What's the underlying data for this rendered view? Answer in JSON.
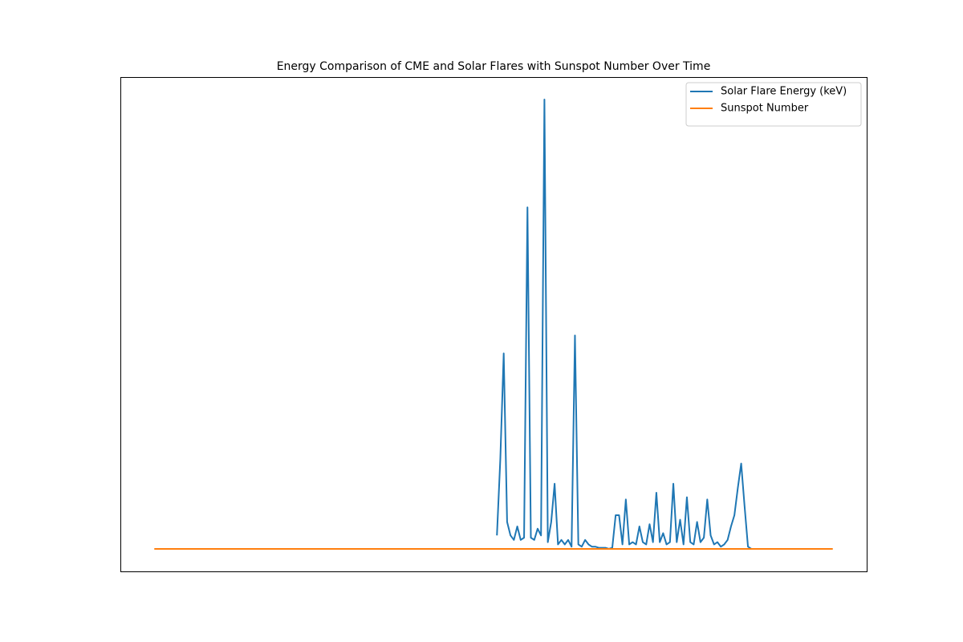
{
  "chart_data": {
    "type": "line",
    "title": "Energy Comparison of CME and Solar Flares with Sunspot Number Over Time",
    "xlim": [
      -10,
      210
    ],
    "ylim": [
      -1,
      21
    ],
    "legend": "upper right",
    "series": [
      {
        "name": "Solar Flare Energy (keV)",
        "color": "#1f77b4",
        "values": [
          null,
          null,
          null,
          null,
          null,
          null,
          null,
          null,
          null,
          null,
          null,
          null,
          null,
          null,
          null,
          null,
          null,
          null,
          null,
          null,
          null,
          null,
          null,
          null,
          null,
          null,
          null,
          null,
          null,
          null,
          null,
          null,
          null,
          null,
          null,
          null,
          null,
          null,
          null,
          null,
          null,
          null,
          null,
          null,
          null,
          null,
          null,
          null,
          null,
          null,
          null,
          null,
          null,
          null,
          null,
          null,
          null,
          null,
          null,
          null,
          null,
          null,
          null,
          null,
          null,
          null,
          null,
          null,
          null,
          null,
          null,
          null,
          null,
          null,
          null,
          null,
          null,
          null,
          null,
          null,
          null,
          null,
          null,
          null,
          null,
          null,
          null,
          null,
          null,
          null,
          null,
          null,
          null,
          null,
          null,
          null,
          null,
          null,
          null,
          null,
          null,
          0.6,
          4.0,
          8.7,
          1.2,
          0.6,
          0.4,
          1.0,
          0.4,
          0.5,
          15.2,
          0.5,
          0.4,
          0.9,
          0.6,
          20.0,
          0.3,
          1.2,
          2.9,
          0.2,
          0.4,
          0.2,
          0.4,
          0.1,
          9.5,
          0.2,
          0.1,
          0.4,
          0.2,
          0.1,
          0.1,
          0.05,
          0.05,
          0.05,
          0,
          0.05,
          1.5,
          1.5,
          0.2,
          2.2,
          0.2,
          0.3,
          0.2,
          1.0,
          0.3,
          0.2,
          1.1,
          0.3,
          2.5,
          0.3,
          0.7,
          0.2,
          0.3,
          2.9,
          0.3,
          1.3,
          0.2,
          2.3,
          0.3,
          0.2,
          1.2,
          0.3,
          0.5,
          2.2,
          0.6,
          0.2,
          0.3,
          0.1,
          0.2,
          0.4,
          1.0,
          1.5,
          2.7,
          3.8,
          1.9,
          0.1,
          0,
          null,
          null,
          null,
          null,
          null,
          null,
          null,
          null,
          null,
          null,
          null,
          null,
          null,
          null,
          null,
          null,
          null,
          null,
          null,
          null,
          null,
          null,
          null,
          null
        ]
      },
      {
        "name": "Sunspot Number",
        "color": "#ff7f0e",
        "values": [
          0,
          0,
          0,
          0,
          0,
          0,
          0,
          0,
          0,
          0,
          0,
          0,
          0,
          0,
          0,
          0,
          0,
          0,
          0,
          0,
          0,
          0,
          0,
          0,
          0,
          0,
          0,
          0,
          0,
          0,
          0,
          0,
          0,
          0,
          0,
          0,
          0,
          0,
          0,
          0,
          0,
          0,
          0,
          0,
          0,
          0,
          0,
          0,
          0,
          0,
          0,
          0,
          0,
          0,
          0,
          0,
          0,
          0,
          0,
          0,
          0,
          0,
          0,
          0,
          0,
          0,
          0,
          0,
          0,
          0,
          0,
          0,
          0,
          0,
          0,
          0,
          0,
          0,
          0,
          0,
          0,
          0,
          0,
          0,
          0,
          0,
          0,
          0,
          0,
          0,
          0,
          0,
          0,
          0,
          0,
          0,
          0,
          0,
          0,
          0,
          0,
          0,
          0,
          0,
          0,
          0,
          0,
          0,
          0,
          0,
          0,
          0,
          0,
          0,
          0,
          0,
          0,
          0,
          0,
          0,
          0,
          0,
          0,
          0,
          0,
          0,
          0,
          0,
          0,
          0,
          0,
          0,
          0,
          0,
          0,
          0,
          0,
          0,
          0,
          0,
          0,
          0,
          0,
          0,
          0,
          0,
          0,
          0,
          0,
          0,
          0,
          0,
          0,
          0,
          0,
          0,
          0,
          0,
          0,
          0,
          0,
          0,
          0,
          0,
          0,
          0,
          0,
          0,
          0,
          0,
          0,
          0,
          0,
          0,
          0,
          0,
          0,
          0,
          0,
          0,
          0,
          0,
          0,
          0,
          0,
          0,
          0,
          0,
          0,
          0,
          0,
          0,
          0,
          0,
          0,
          0,
          0,
          0,
          0,
          0,
          0
        ]
      }
    ]
  }
}
